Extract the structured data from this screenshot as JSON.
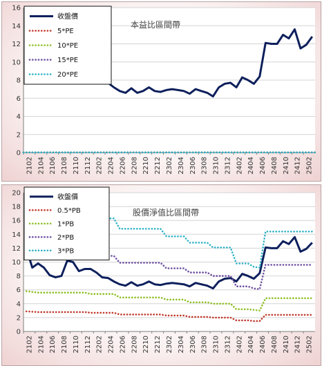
{
  "chart_data": [
    {
      "type": "line",
      "title": "本益比區間帶",
      "xlabel": "",
      "ylabel": "",
      "ylim": [
        0,
        16
      ],
      "yticks": [
        0,
        2,
        4,
        6,
        8,
        10,
        12,
        14,
        16
      ],
      "x_tick_labels": [
        "2102",
        "2104",
        "2106",
        "2108",
        "2110",
        "2112",
        "2202",
        "2204",
        "2206",
        "2208",
        "2210",
        "2212",
        "2302",
        "2304",
        "2306",
        "2308",
        "2310",
        "2312",
        "2402",
        "2404",
        "2406",
        "2408",
        "2410",
        "2412",
        "2502"
      ],
      "legend": {
        "position": "top-left"
      },
      "series": [
        {
          "name": "收盤價",
          "color": "#0d1f5c",
          "style": "solid",
          "values": [
            8.2,
            9.0,
            9.6,
            8.5,
            8.0,
            7.8,
            7.9,
            10.2,
            9.9,
            8.7,
            9.0,
            9.0,
            8.5,
            7.8,
            7.7,
            7.2,
            6.8,
            6.6,
            7.1,
            6.6,
            6.8,
            7.2,
            6.8,
            6.7,
            6.9,
            7.0,
            6.9,
            6.8,
            6.5,
            7.0,
            6.8,
            6.6,
            6.2,
            7.2,
            7.6,
            7.7,
            7.2,
            8.3,
            8.0,
            7.6,
            8.4,
            12.1,
            12.0,
            12.0,
            13.0,
            12.6,
            13.6,
            11.5,
            11.9,
            12.8
          ]
        },
        {
          "name": "5*PE",
          "color": "#c0392b",
          "style": "dotted",
          "values": [
            0.02
          ]
        },
        {
          "name": "10*PE",
          "color": "#8fbf26",
          "style": "dotted",
          "values": [
            0.02
          ]
        },
        {
          "name": "15*PE",
          "color": "#6b4fa0",
          "style": "dotted",
          "values": [
            0.02
          ]
        },
        {
          "name": "20*PE",
          "color": "#2fb3c6",
          "style": "dotted",
          "values": [
            0.02
          ]
        }
      ]
    },
    {
      "type": "line",
      "title": "股價淨值比區間帶",
      "xlabel": "",
      "ylabel": "",
      "ylim": [
        0,
        20
      ],
      "yticks": [
        0,
        2,
        4,
        6,
        8,
        10,
        12,
        14,
        16,
        18,
        20
      ],
      "x_tick_labels": [
        "2102",
        "2104",
        "2106",
        "2108",
        "2110",
        "2112",
        "2202",
        "2204",
        "2206",
        "2208",
        "2210",
        "2212",
        "2302",
        "2304",
        "2306",
        "2308",
        "2310",
        "2312",
        "2402",
        "2404",
        "2406",
        "2408",
        "2410",
        "2412",
        "2502"
      ],
      "legend": {
        "position": "top-left"
      },
      "series": [
        {
          "name": "收盤價",
          "color": "#0d1f5c",
          "style": "solid",
          "values": [
            12.0,
            9.2,
            9.8,
            9.2,
            8.1,
            7.8,
            8.0,
            10.2,
            10.0,
            8.7,
            9.0,
            9.0,
            8.5,
            7.8,
            7.7,
            7.2,
            6.8,
            6.6,
            7.1,
            6.6,
            6.8,
            7.2,
            6.8,
            6.7,
            6.9,
            7.0,
            6.9,
            6.8,
            6.5,
            7.0,
            6.8,
            6.6,
            6.2,
            7.2,
            7.6,
            7.7,
            7.2,
            8.3,
            8.0,
            7.6,
            8.4,
            12.1,
            12.0,
            12.0,
            13.0,
            12.6,
            13.6,
            11.5,
            11.9,
            12.8
          ]
        },
        {
          "name": "0.5*PB",
          "color": "#c0392b",
          "style": "dotted",
          "values": [
            2.9,
            2.85,
            2.8,
            2.8,
            2.8,
            2.8,
            2.8,
            2.8,
            2.8,
            2.8,
            2.8,
            2.7,
            2.7,
            2.7,
            2.7,
            2.7,
            2.45,
            2.45,
            2.45,
            2.45,
            2.45,
            2.45,
            2.45,
            2.45,
            2.3,
            2.3,
            2.3,
            2.3,
            2.1,
            2.1,
            2.1,
            2.1,
            2.0,
            2.0,
            2.0,
            2.0,
            1.6,
            1.6,
            1.6,
            1.5,
            1.5,
            2.4,
            2.4,
            2.4,
            2.4,
            2.4,
            2.4,
            2.4,
            2.4,
            2.4
          ]
        },
        {
          "name": "1*PB",
          "color": "#8fbf26",
          "style": "dotted",
          "values": [
            5.8,
            5.7,
            5.6,
            5.6,
            5.6,
            5.6,
            5.6,
            5.6,
            5.6,
            5.6,
            5.6,
            5.4,
            5.4,
            5.4,
            5.4,
            5.4,
            4.9,
            4.9,
            4.9,
            4.9,
            4.9,
            4.9,
            4.9,
            4.9,
            4.6,
            4.6,
            4.6,
            4.6,
            4.2,
            4.2,
            4.2,
            4.2,
            4.0,
            4.0,
            4.0,
            4.0,
            3.2,
            3.2,
            3.2,
            3.1,
            3.0,
            4.8,
            4.8,
            4.8,
            4.8,
            4.8,
            4.8,
            4.8,
            4.8,
            4.8
          ]
        },
        {
          "name": "2*PB",
          "color": "#6b4fa0",
          "style": "dotted",
          "values": [
            11.6,
            11.4,
            11.2,
            11.2,
            11.2,
            11.2,
            11.2,
            11.2,
            11.2,
            11.3,
            11.3,
            10.9,
            10.9,
            10.9,
            10.9,
            10.9,
            9.9,
            9.9,
            9.9,
            9.9,
            9.9,
            9.9,
            9.9,
            9.9,
            9.1,
            9.1,
            9.1,
            9.1,
            8.5,
            8.5,
            8.5,
            8.5,
            8.0,
            8.0,
            8.0,
            8.0,
            6.5,
            6.5,
            6.5,
            6.2,
            6.1,
            9.6,
            9.6,
            9.6,
            9.6,
            9.6,
            9.6,
            9.6,
            9.6,
            9.6
          ]
        },
        {
          "name": "3*PB",
          "color": "#2fb3c6",
          "style": "dotted",
          "values": [
            17.4,
            17.1,
            16.8,
            16.8,
            16.8,
            16.8,
            16.8,
            16.8,
            16.8,
            16.9,
            16.9,
            16.3,
            16.3,
            16.3,
            16.3,
            16.3,
            14.8,
            14.8,
            14.8,
            14.8,
            14.8,
            14.8,
            14.8,
            14.8,
            13.7,
            13.7,
            13.7,
            13.7,
            12.8,
            12.8,
            12.8,
            12.8,
            12.1,
            12.1,
            12.1,
            12.1,
            9.8,
            9.8,
            9.8,
            9.3,
            9.2,
            14.4,
            14.4,
            14.4,
            14.4,
            14.4,
            14.4,
            14.4,
            14.4,
            14.4
          ]
        }
      ]
    }
  ]
}
